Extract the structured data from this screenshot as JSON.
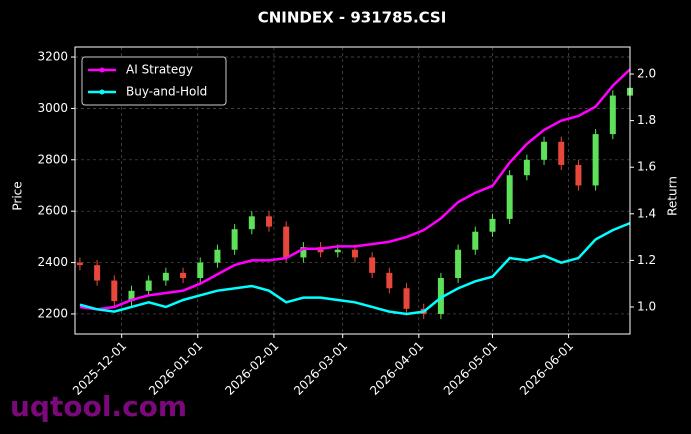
{
  "chart_data": {
    "type": "candlestick",
    "title": "CNINDEX - 931785.CSI",
    "y_label": "Price",
    "y2_label": "Return",
    "watermark": "uqtool.com",
    "x": [
      "2025-11-14",
      "2025-11-21",
      "2025-11-28",
      "2025-12-05",
      "2025-12-12",
      "2025-12-19",
      "2025-12-26",
      "2026-01-02",
      "2026-01-09",
      "2026-01-16",
      "2026-01-23",
      "2026-01-30",
      "2026-02-06",
      "2026-02-13",
      "2026-02-20",
      "2026-02-27",
      "2026-03-06",
      "2026-03-13",
      "2026-03-20",
      "2026-03-27",
      "2026-04-03",
      "2026-04-10",
      "2026-04-17",
      "2026-04-24",
      "2026-05-01",
      "2026-05-08",
      "2026-05-15",
      "2026-05-22",
      "2026-05-29",
      "2026-06-05",
      "2026-06-12",
      "2026-06-19",
      "2026-06-26"
    ],
    "open": [
      2400,
      2390,
      2330,
      2250,
      2290,
      2330,
      2360,
      2340,
      2400,
      2450,
      2530,
      2580,
      2540,
      2420,
      2460,
      2440,
      2450,
      2420,
      2360,
      2300,
      2220,
      2200,
      2340,
      2450,
      2520,
      2570,
      2740,
      2800,
      2870,
      2780,
      2700,
      2900,
      3050
    ],
    "high": [
      2420,
      2410,
      2350,
      2310,
      2350,
      2380,
      2380,
      2420,
      2470,
      2550,
      2600,
      2600,
      2560,
      2480,
      2480,
      2470,
      2470,
      2440,
      2380,
      2320,
      2240,
      2360,
      2470,
      2540,
      2590,
      2760,
      2820,
      2890,
      2890,
      2800,
      2920,
      3070,
      3100
    ],
    "low": [
      2370,
      2310,
      2230,
      2230,
      2270,
      2310,
      2320,
      2320,
      2380,
      2430,
      2510,
      2520,
      2400,
      2400,
      2420,
      2420,
      2400,
      2340,
      2280,
      2200,
      2180,
      2180,
      2320,
      2430,
      2500,
      2550,
      2720,
      2780,
      2760,
      2680,
      2680,
      2880,
      3030
    ],
    "close": [
      2390,
      2330,
      2250,
      2290,
      2330,
      2360,
      2340,
      2400,
      2450,
      2530,
      2580,
      2540,
      2420,
      2460,
      2440,
      2450,
      2420,
      2360,
      2300,
      2220,
      2200,
      2340,
      2450,
      2520,
      2570,
      2740,
      2800,
      2870,
      2780,
      2700,
      2900,
      3050,
      3080
    ],
    "up_color": "#5fe05a",
    "down_color": "#e8473c",
    "series": [
      {
        "name": "AI Strategy",
        "color": "#ff00ff",
        "axis": "y2",
        "values": [
          1.0,
          0.99,
          1.0,
          1.03,
          1.05,
          1.06,
          1.07,
          1.1,
          1.14,
          1.18,
          1.2,
          1.2,
          1.21,
          1.25,
          1.25,
          1.26,
          1.26,
          1.27,
          1.28,
          1.3,
          1.33,
          1.38,
          1.45,
          1.49,
          1.52,
          1.62,
          1.7,
          1.76,
          1.8,
          1.82,
          1.86,
          1.95,
          2.02
        ]
      },
      {
        "name": "Buy-and-Hold",
        "color": "#00ffff",
        "axis": "y2",
        "values": [
          1.01,
          0.99,
          0.98,
          1.0,
          1.02,
          1.0,
          1.03,
          1.05,
          1.07,
          1.08,
          1.09,
          1.07,
          1.02,
          1.04,
          1.04,
          1.03,
          1.02,
          1.0,
          0.98,
          0.97,
          0.98,
          1.04,
          1.08,
          1.11,
          1.13,
          1.21,
          1.2,
          1.22,
          1.19,
          1.21,
          1.29,
          1.33,
          1.36
        ]
      }
    ],
    "xlim": [
      "2025-11-12",
      "2026-06-26"
    ],
    "xticks": [
      "2025-12-01",
      "2026-01-01",
      "2026-02-01",
      "2026-03-01",
      "2026-04-01",
      "2026-05-01",
      "2026-06-01"
    ],
    "ylim": [
      2122,
      3239
    ],
    "yticks": [
      2200,
      2400,
      2600,
      2800,
      3000,
      3200
    ],
    "y2lim": [
      0.884,
      2.116
    ],
    "y2ticks": [
      {
        "value": 1.0,
        "label": "1.0"
      },
      1.2,
      1.4,
      1.6,
      1.8,
      {
        "value": 2.0,
        "label": "2.0"
      }
    ],
    "grid": true,
    "legend": "upper left"
  }
}
